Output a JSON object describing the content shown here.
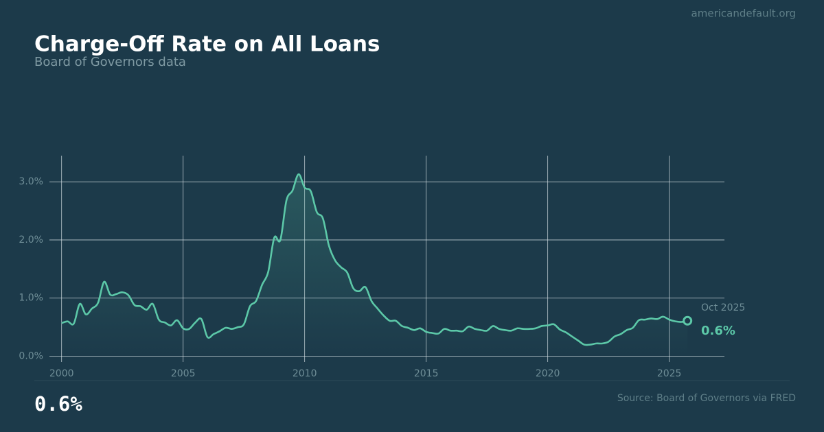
{
  "site": "americandefault.org",
  "chart_data": {
    "type": "line",
    "title": "Charge-Off Rate on All Loans",
    "subtitle": "Board of Governors data",
    "source": "Source: Board of Governors via FRED",
    "x": [
      2000,
      2000.25,
      2000.5,
      2000.75,
      2001,
      2001.25,
      2001.5,
      2001.75,
      2002,
      2002.25,
      2002.5,
      2002.75,
      2003,
      2003.25,
      2003.5,
      2003.75,
      2004,
      2004.25,
      2004.5,
      2004.75,
      2005,
      2005.25,
      2005.5,
      2005.75,
      2006,
      2006.25,
      2006.5,
      2006.75,
      2007,
      2007.25,
      2007.5,
      2007.75,
      2008,
      2008.25,
      2008.5,
      2008.75,
      2009,
      2009.25,
      2009.5,
      2009.75,
      2010,
      2010.25,
      2010.5,
      2010.75,
      2011,
      2011.25,
      2011.5,
      2011.75,
      2012,
      2012.25,
      2012.5,
      2012.75,
      2013,
      2013.25,
      2013.5,
      2013.75,
      2014,
      2014.25,
      2014.5,
      2014.75,
      2015,
      2015.25,
      2015.5,
      2015.75,
      2016,
      2016.25,
      2016.5,
      2016.75,
      2017,
      2017.25,
      2017.5,
      2017.75,
      2018,
      2018.25,
      2018.5,
      2018.75,
      2019,
      2019.25,
      2019.5,
      2019.75,
      2020,
      2020.25,
      2020.5,
      2020.75,
      2021,
      2021.25,
      2021.5,
      2021.75,
      2022,
      2022.25,
      2022.5,
      2022.75,
      2023,
      2023.25,
      2023.5,
      2023.75,
      2024,
      2024.25,
      2024.5,
      2024.75,
      2025,
      2025.25,
      2025.5,
      2025.75
    ],
    "series": [
      {
        "color": "#5cc8a8",
        "values": [
          0.57,
          0.6,
          0.56,
          0.9,
          0.72,
          0.82,
          0.92,
          1.28,
          1.06,
          1.07,
          1.1,
          1.05,
          0.88,
          0.86,
          0.8,
          0.9,
          0.63,
          0.58,
          0.53,
          0.62,
          0.48,
          0.47,
          0.58,
          0.64,
          0.33,
          0.38,
          0.43,
          0.49,
          0.47,
          0.5,
          0.55,
          0.86,
          0.95,
          1.23,
          1.45,
          2.04,
          2.0,
          2.68,
          2.85,
          3.13,
          2.9,
          2.84,
          2.48,
          2.37,
          1.9,
          1.65,
          1.53,
          1.44,
          1.17,
          1.12,
          1.19,
          0.95,
          0.82,
          0.7,
          0.61,
          0.61,
          0.52,
          0.49,
          0.45,
          0.48,
          0.42,
          0.4,
          0.39,
          0.47,
          0.44,
          0.44,
          0.43,
          0.51,
          0.47,
          0.45,
          0.44,
          0.52,
          0.47,
          0.45,
          0.44,
          0.48,
          0.47,
          0.47,
          0.48,
          0.52,
          0.53,
          0.55,
          0.46,
          0.41,
          0.34,
          0.27,
          0.2,
          0.2,
          0.22,
          0.22,
          0.25,
          0.34,
          0.38,
          0.45,
          0.49,
          0.62,
          0.63,
          0.65,
          0.64,
          0.68,
          0.63,
          0.6,
          0.59,
          0.61
        ]
      }
    ],
    "last_point": {
      "date_label": "Oct 2025",
      "value": 0.6,
      "value_label": "0.6%"
    },
    "xlim": [
      1999.5,
      2027.27
    ],
    "xticks": [
      2000,
      2005,
      2010,
      2015,
      2020,
      2025
    ],
    "ylim": [
      -0.1,
      3.45
    ],
    "yticks": [
      {
        "value": 0,
        "label": "0.0%"
      },
      {
        "value": 1,
        "label": "1.0%"
      },
      {
        "value": 2,
        "label": "2.0%"
      },
      {
        "value": 3,
        "label": "3.0%"
      }
    ],
    "grid": true
  }
}
